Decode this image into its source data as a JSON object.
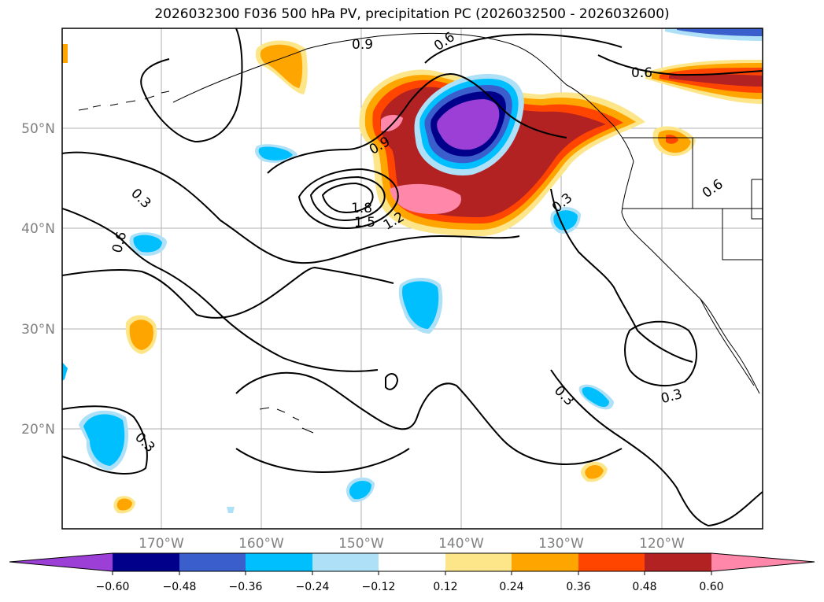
{
  "title": "2026032300 F036 500 hPa PV, precipitation PC (2026032500 - 2026032600)",
  "latitude_labels": [
    "50°N",
    "40°N",
    "30°N",
    "20°N"
  ],
  "longitude_labels": [
    "170°W",
    "160°W",
    "150°W",
    "140°W",
    "130°W",
    "120°W"
  ],
  "contour_labels": [
    "0.9",
    "0.6",
    "0.6",
    "0.9",
    "0.3",
    "0.6",
    "1.8",
    "1.5",
    "1.2",
    "0.3",
    "0.6",
    "0.3",
    "0.3",
    "0.3"
  ],
  "colorbar": {
    "tick_labels": [
      "−0.60",
      "−0.48",
      "−0.36",
      "−0.24",
      "−0.12",
      "0.12",
      "0.24",
      "0.36",
      "0.48",
      "0.60"
    ],
    "colors": [
      "#9b3fd6",
      "#00008b",
      "#3a5fcd",
      "#00bfff",
      "#aee0f7",
      "#ffffff",
      "#fde68a",
      "#ffa500",
      "#ff4500",
      "#b22222",
      "#ff88aa"
    ]
  }
}
